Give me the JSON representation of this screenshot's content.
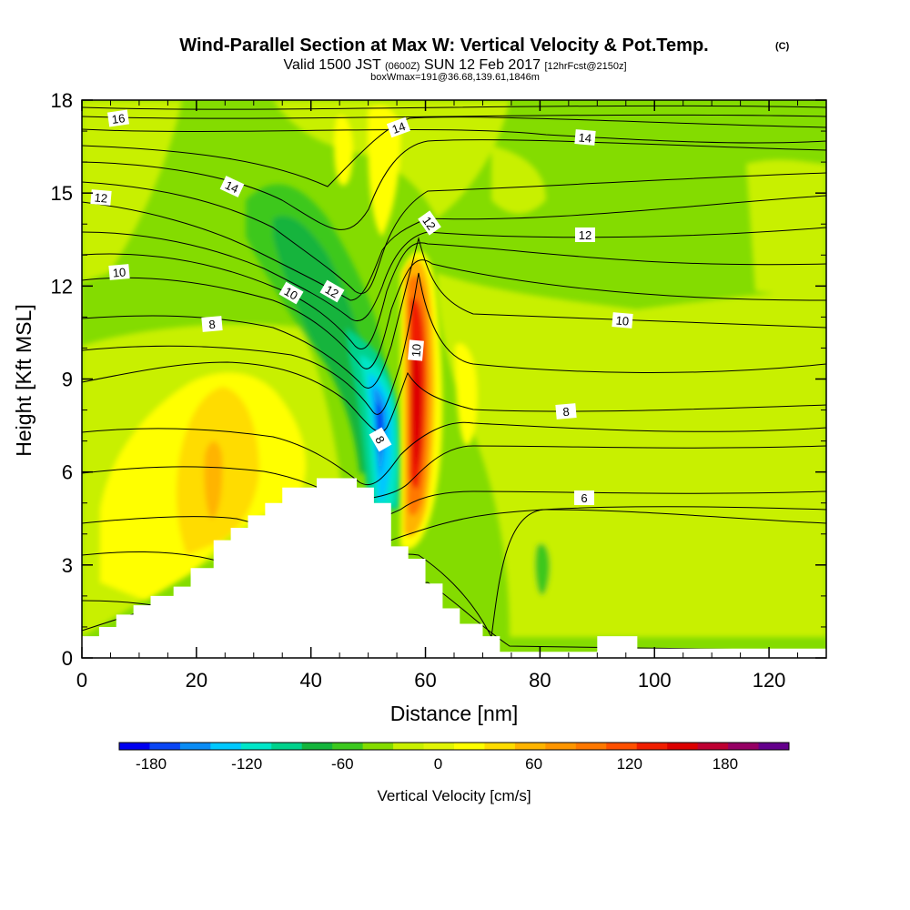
{
  "chart_data": {
    "type": "heatmap",
    "title": "Wind-Parallel Section at Max W: Vertical Velocity & Pot.Temp.",
    "title_mark": "(C)",
    "subtitle": {
      "a": "Valid 1500 JST",
      "b": "(0600Z)",
      "c": "SUN 12 Feb 2017",
      "d": "[12hrFcst@2150z]"
    },
    "subtitle2": "boxWmax=191@36.68,139.61,1846m",
    "xlabel": "Distance [nm]",
    "ylabel": "Height [Kft MSL]",
    "xlim": [
      0,
      130
    ],
    "ylim": [
      0,
      18
    ],
    "xticks": [
      "0",
      "20",
      "40",
      "60",
      "80",
      "100",
      "120"
    ],
    "yticks": [
      "0",
      "3",
      "6",
      "9",
      "12",
      "15",
      "18"
    ],
    "colorbar": {
      "label": "Vertical Velocity [cm/s]",
      "range": [
        -200,
        220
      ],
      "ticks": [
        "-180",
        "-120",
        "-60",
        "0",
        "60",
        "120",
        "180"
      ],
      "colors": [
        "#0000f0",
        "#0a46f5",
        "#0a8cf5",
        "#00c8ff",
        "#00e6c8",
        "#00d28c",
        "#14b43c",
        "#3cc81e",
        "#84dc00",
        "#c8f000",
        "#e1f505",
        "#ffff00",
        "#ffdc00",
        "#ffb400",
        "#ff9600",
        "#ff7800",
        "#ff5000",
        "#f01e00",
        "#dc0000",
        "#be0032",
        "#960064",
        "#64008c"
      ]
    },
    "contour_labels": [
      "16",
      "14",
      "14",
      "14",
      "12",
      "12",
      "12",
      "12",
      "10",
      "10",
      "10",
      "10",
      "8",
      "8",
      "8",
      "6"
    ],
    "terrain": [
      [
        0,
        0.7
      ],
      [
        3,
        0.7
      ],
      [
        3,
        1
      ],
      [
        6,
        1
      ],
      [
        6,
        1.4
      ],
      [
        9,
        1.4
      ],
      [
        9,
        1.7
      ],
      [
        12,
        1.7
      ],
      [
        12,
        2
      ],
      [
        16,
        2
      ],
      [
        16,
        2.3
      ],
      [
        19,
        2.3
      ],
      [
        19,
        2.9
      ],
      [
        23,
        2.9
      ],
      [
        23,
        3.8
      ],
      [
        26,
        3.8
      ],
      [
        26,
        4.2
      ],
      [
        29,
        4.2
      ],
      [
        29,
        4.6
      ],
      [
        32,
        4.6
      ],
      [
        32,
        5
      ],
      [
        35,
        5
      ],
      [
        35,
        5.5
      ],
      [
        41,
        5.5
      ],
      [
        41,
        5.8
      ],
      [
        48,
        5.8
      ],
      [
        48,
        5.5
      ],
      [
        51,
        5.5
      ],
      [
        51,
        5
      ],
      [
        54,
        5
      ],
      [
        54,
        3.6
      ],
      [
        57,
        3.6
      ],
      [
        57,
        3.2
      ],
      [
        60,
        3.2
      ],
      [
        60,
        2.4
      ],
      [
        63,
        2.4
      ],
      [
        63,
        1.6
      ],
      [
        66,
        1.6
      ],
      [
        66,
        1.1
      ],
      [
        70,
        1.1
      ],
      [
        70,
        0.7
      ],
      [
        73,
        0.7
      ],
      [
        73,
        0.2
      ],
      [
        90,
        0.2
      ],
      [
        90,
        0.7
      ],
      [
        97,
        0.7
      ],
      [
        97,
        0.3
      ],
      [
        130,
        0.3
      ]
    ]
  }
}
